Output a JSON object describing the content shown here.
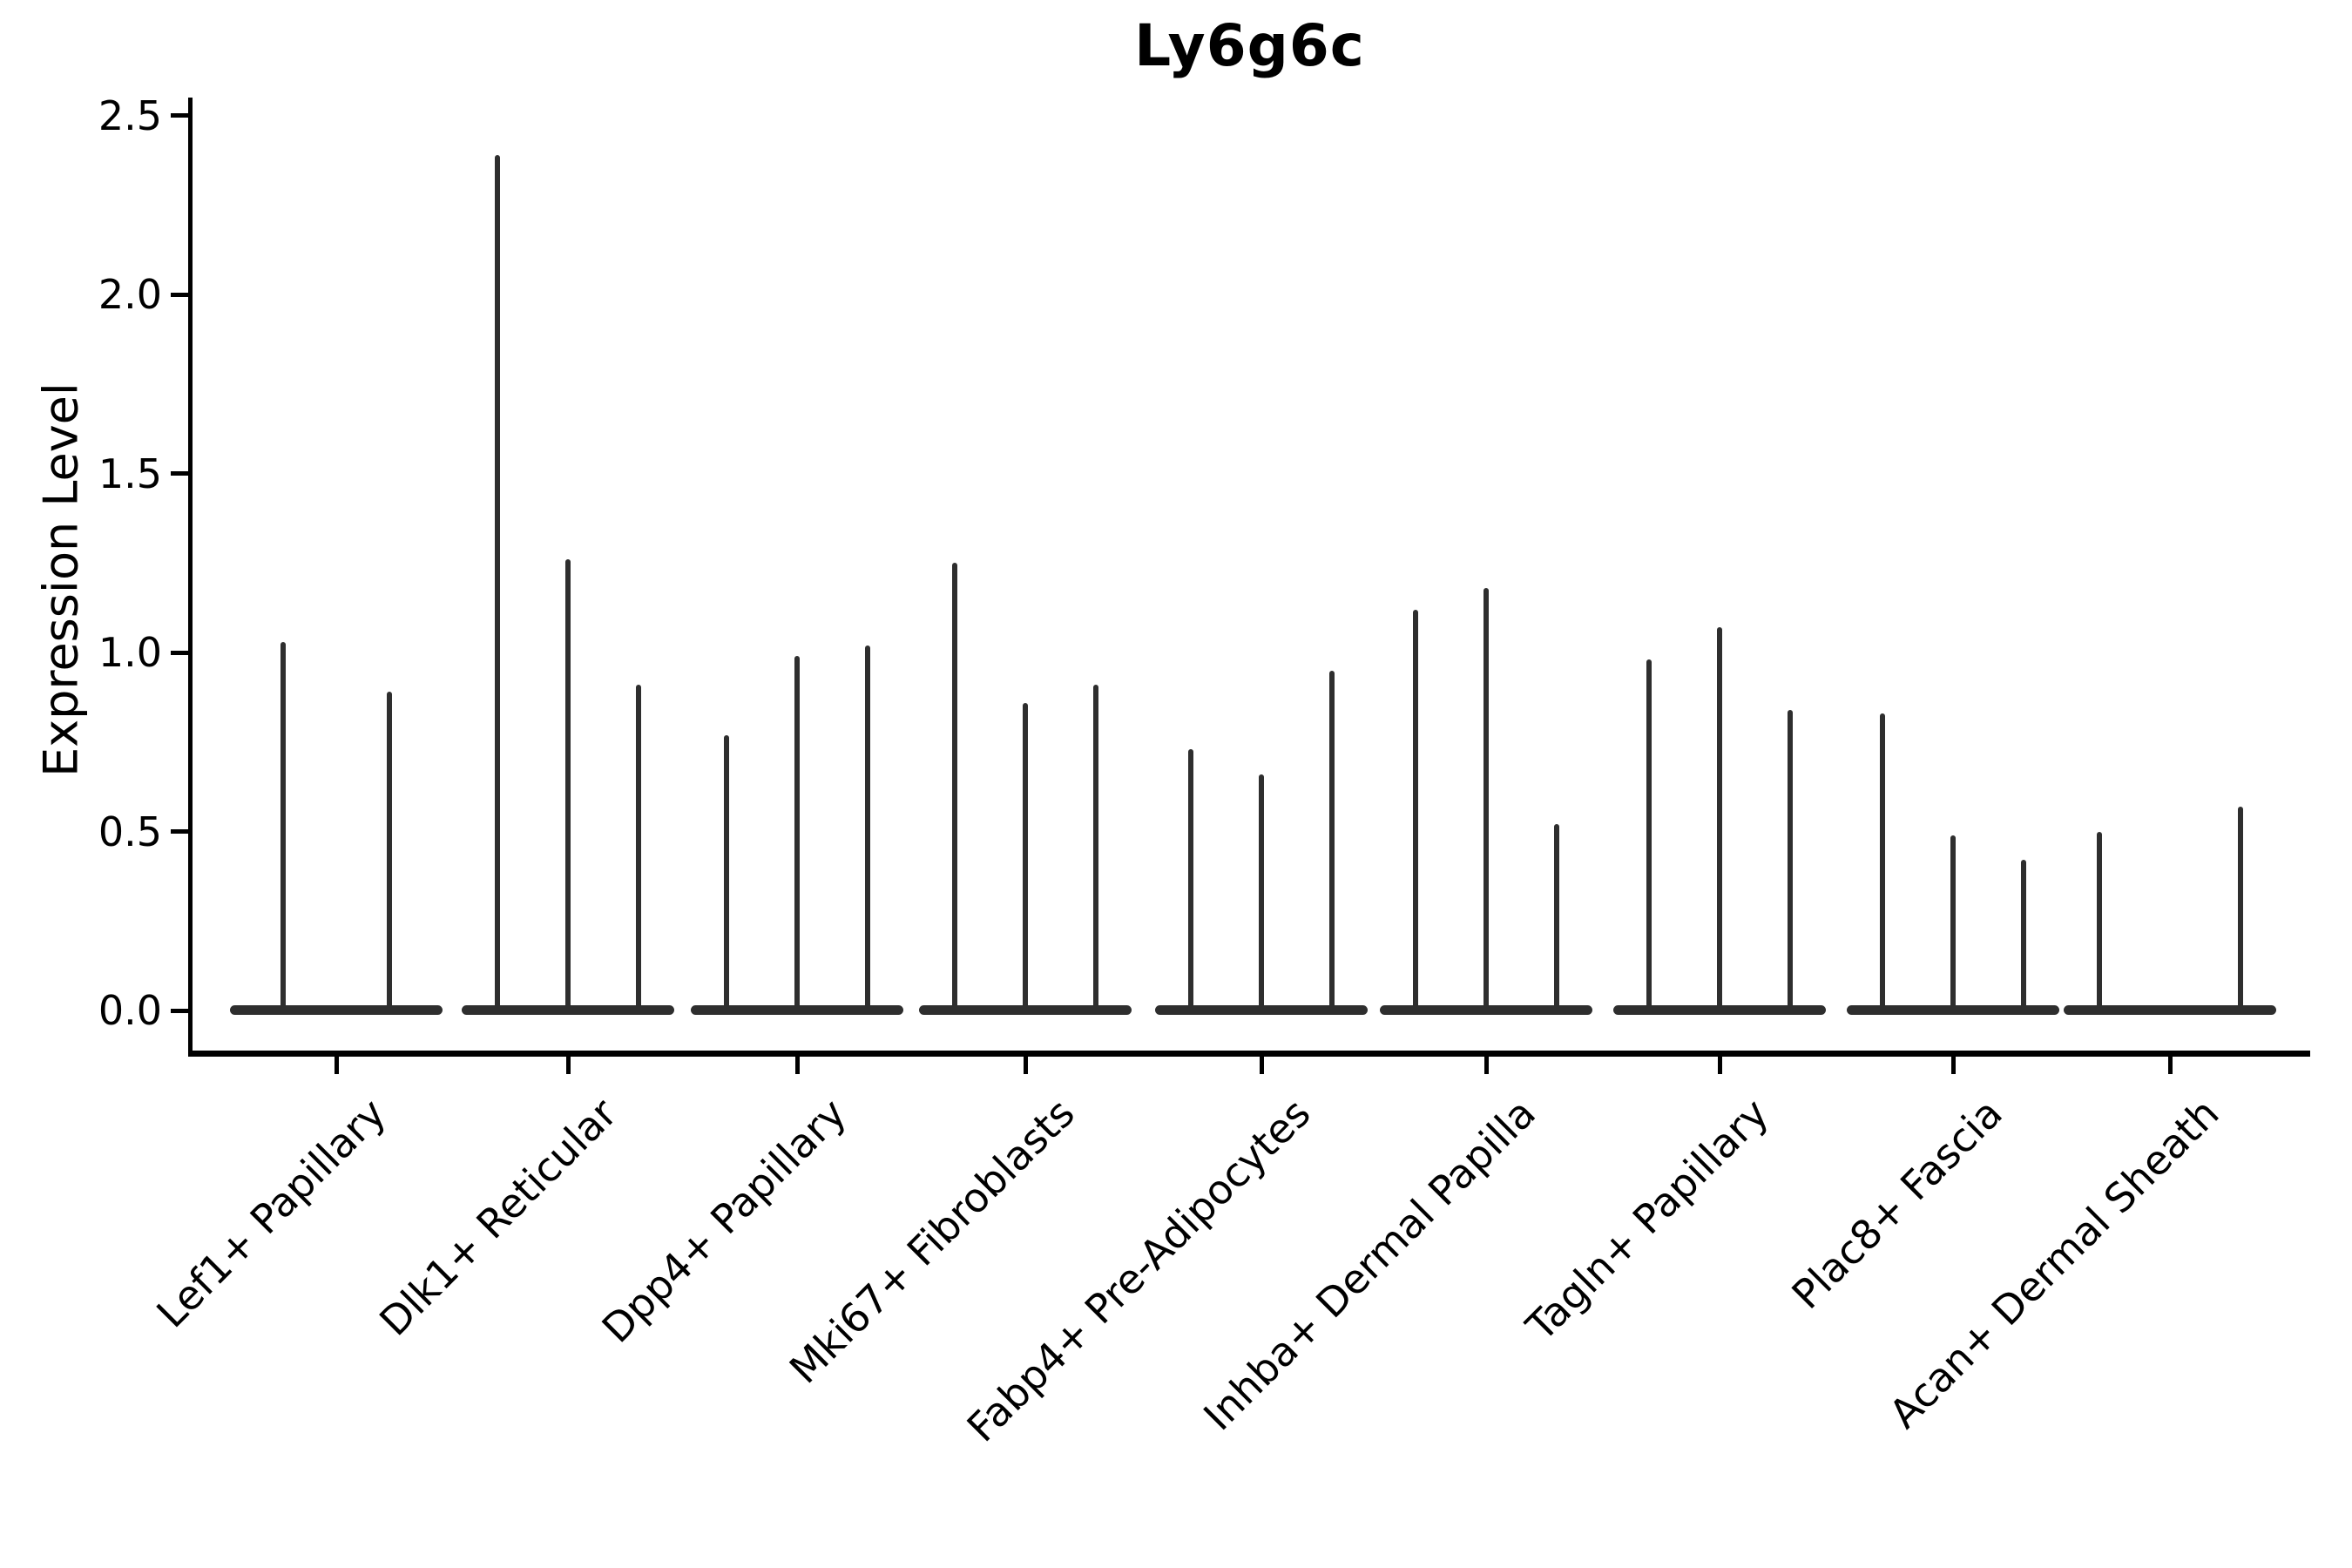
{
  "title": "Ly6g6c",
  "y_axis": {
    "label": "Expression Level",
    "ticks": [
      {
        "label": "0.0",
        "value": 0.0
      },
      {
        "label": "0.5",
        "value": 0.5
      },
      {
        "label": "1.0",
        "value": 1.0
      },
      {
        "label": "1.5",
        "value": 1.5
      },
      {
        "label": "2.0",
        "value": 2.0
      },
      {
        "label": "2.5",
        "value": 2.5
      }
    ]
  },
  "chart_data": {
    "type": "violin",
    "title": "Ly6g6c",
    "xlabel": "",
    "ylabel": "Expression Level",
    "ylim": [
      0,
      2.5
    ],
    "yticks": [
      0.0,
      0.5,
      1.0,
      1.5,
      2.0,
      2.5
    ],
    "grid": false,
    "legend": "none",
    "categories": [
      "Lef1+ Papillary",
      "Dlk1+ Reticular",
      "Dpp4+ Papillary",
      "Mki67+ Fibroblasts",
      "Fabp4+ Pre-Adipocytes",
      "Inhba+ Dermal Papilla",
      "Tagln+ Papillary",
      "Plac8+ Fascia",
      "Acan+ Dermal Sheath"
    ],
    "series": [
      {
        "category": "Lef1+ Papillary",
        "violin_max_values": [
          1.03,
          0.89
        ],
        "n_slots": 2,
        "slots": [
          0,
          1
        ]
      },
      {
        "category": "Dlk1+ Reticular",
        "violin_max_values": [
          2.39,
          1.26,
          0.91
        ],
        "n_slots": 3,
        "slots": [
          0,
          1,
          2
        ]
      },
      {
        "category": "Dpp4+ Papillary",
        "violin_max_values": [
          0.77,
          0.99,
          1.02
        ],
        "n_slots": 3,
        "slots": [
          0,
          1,
          2
        ]
      },
      {
        "category": "Mki67+ Fibroblasts",
        "violin_max_values": [
          1.25,
          0.86,
          0.91
        ],
        "n_slots": 3,
        "slots": [
          0,
          1,
          2
        ]
      },
      {
        "category": "Fabp4+ Pre-Adipocytes",
        "violin_max_values": [
          0.73,
          0.66,
          0.95
        ],
        "n_slots": 3,
        "slots": [
          0,
          1,
          2
        ]
      },
      {
        "category": "Inhba+ Dermal Papilla",
        "violin_max_values": [
          1.12,
          1.18,
          0.52
        ],
        "n_slots": 3,
        "slots": [
          0,
          1,
          2
        ]
      },
      {
        "category": "Tagln+ Papillary",
        "violin_max_values": [
          0.98,
          1.07,
          0.84
        ],
        "n_slots": 3,
        "slots": [
          0,
          1,
          2
        ]
      },
      {
        "category": "Plac8+ Fascia",
        "violin_max_values": [
          0.83,
          0.49,
          0.42
        ],
        "n_slots": 3,
        "slots": [
          0,
          1,
          2
        ]
      },
      {
        "category": "Acan+ Dermal Sheath",
        "violin_max_values": [
          0.5,
          0.57
        ],
        "n_slots": 3,
        "slots": [
          0,
          2
        ]
      }
    ],
    "violin_min_value": 0.0,
    "baseline_value": 0.0,
    "colors": {
      "violin_stroke": "#2e2e2e",
      "axis": "#000000",
      "background": "#ffffff"
    }
  }
}
